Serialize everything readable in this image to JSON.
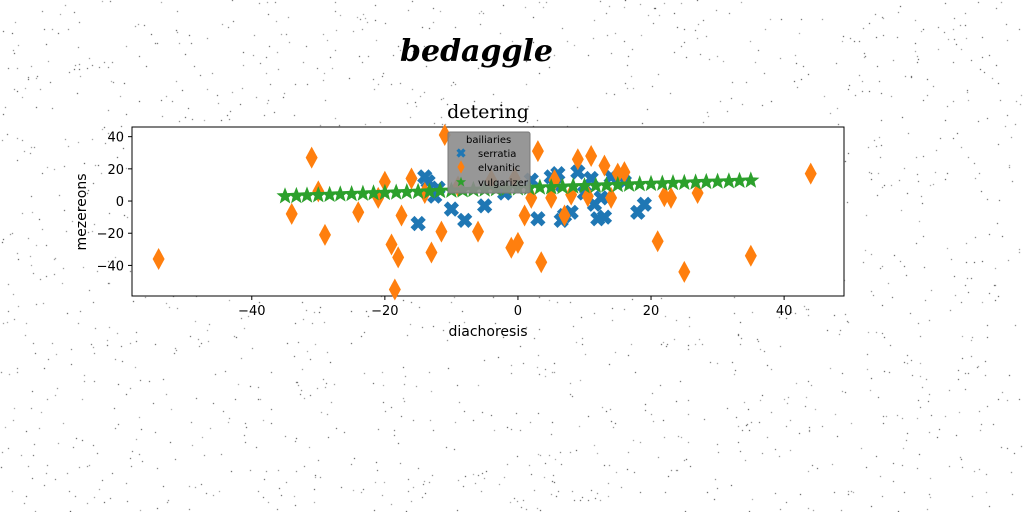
{
  "page_title": "bedaggle",
  "chart_data": {
    "type": "scatter",
    "title": "detering",
    "xlabel": "diachoresis",
    "ylabel": "mezereons",
    "xlim": [
      -58,
      49
    ],
    "ylim": [
      -59,
      46
    ],
    "xticks": [
      -40,
      -20,
      0,
      20,
      40
    ],
    "yticks": [
      -40,
      -20,
      0,
      20,
      40
    ],
    "grid": false,
    "legend": {
      "title": "bailiaries",
      "placement": "top-center"
    },
    "series": [
      {
        "name": "serratia",
        "marker": "x-filled",
        "color": "#1f77b4",
        "x": [
          -14,
          -13.5,
          -12.5,
          -15,
          -10,
          -8,
          -5,
          -2,
          2,
          3,
          5,
          6,
          7,
          8,
          9,
          10,
          11,
          11.5,
          12,
          12.5,
          13,
          14,
          16,
          18,
          19,
          -12,
          6.5,
          5.5
        ],
        "y": [
          15,
          12,
          3,
          -14,
          -5,
          -12,
          -3,
          5,
          13,
          -11,
          15,
          17,
          -9,
          -7,
          18,
          5,
          14,
          -2,
          -11,
          2,
          -10,
          15,
          12,
          -7,
          -2,
          8,
          -12,
          10
        ]
      },
      {
        "name": "elvanitic",
        "marker": "thin-diamond",
        "color": "#ff7f0e",
        "x": [
          -54,
          -34,
          -31,
          -30,
          -29,
          -24,
          -21,
          -20,
          -19,
          -18.5,
          -18,
          -17.5,
          -16,
          -14,
          -13,
          -11.5,
          -11,
          -6,
          -4,
          -1,
          -0.5,
          0,
          1,
          2,
          3,
          3.5,
          5,
          7,
          8,
          9,
          10.5,
          11,
          13,
          14,
          15,
          16,
          21,
          22,
          23,
          25,
          27,
          35,
          44,
          5.5,
          -9
        ],
        "y": [
          -36,
          -8,
          27,
          6,
          -21,
          -7,
          2,
          12,
          -27,
          -55,
          -35,
          -9,
          14,
          5,
          -32,
          -19,
          41,
          -19,
          13,
          -29,
          14,
          -26,
          -9,
          2,
          31,
          -38,
          2,
          -9,
          4,
          26,
          3,
          28,
          22,
          2,
          17,
          18,
          -25,
          3,
          2,
          -44,
          5,
          -34,
          17,
          13,
          9
        ]
      },
      {
        "name": "vulgarizer",
        "marker": "star",
        "color": "#2ca02c",
        "x": [
          -35,
          -33.3,
          -31.7,
          -30,
          -28.3,
          -26.7,
          -25,
          -23.3,
          -21.7,
          -20,
          -18.3,
          -16.7,
          -15,
          -13.3,
          -11.7,
          -10,
          -8.3,
          -6.7,
          -5,
          -3.3,
          -1.7,
          0,
          1.7,
          3.3,
          5,
          6.7,
          8.3,
          10,
          11.7,
          13.3,
          15,
          16.7,
          18.3,
          20,
          21.7,
          23.3,
          25,
          26.7,
          28.3,
          30,
          31.7,
          33.3,
          35
        ],
        "y": [
          3,
          3.2,
          3.5,
          3.7,
          3.9,
          4.2,
          4.4,
          4.6,
          4.9,
          5.1,
          5.3,
          5.6,
          5.8,
          6,
          6.3,
          6.5,
          6.7,
          7,
          7.2,
          7.4,
          7.7,
          7.9,
          8.1,
          8.4,
          8.6,
          8.8,
          9.1,
          9.3,
          9.5,
          9.8,
          10,
          10.2,
          10.5,
          10.7,
          10.9,
          11.2,
          11.4,
          11.6,
          11.9,
          12.1,
          12.3,
          12.6,
          12.8
        ]
      }
    ]
  }
}
